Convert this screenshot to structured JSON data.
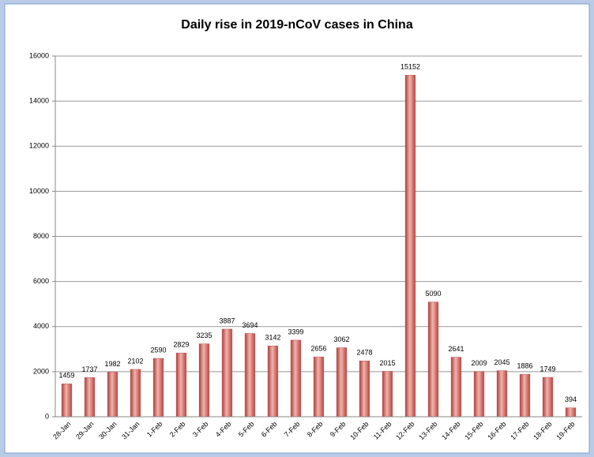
{
  "chart_data": {
    "type": "bar",
    "title": "Daily rise in 2019-nCoV cases in China",
    "categories": [
      "28-Jan",
      "29-Jan",
      "30-Jan",
      "31-Jan",
      "1-Feb",
      "2-Feb",
      "3-Feb",
      "4-Feb",
      "5-Feb",
      "6-Feb",
      "7-Feb",
      "8-Feb",
      "9-Feb",
      "10-Feb",
      "11-Feb",
      "12-Feb",
      "13-Feb",
      "14-Feb",
      "15-Feb",
      "16-Feb",
      "17-Feb",
      "18-Feb",
      "19-Feb"
    ],
    "values": [
      1459,
      1737,
      1982,
      2102,
      2590,
      2829,
      3235,
      3887,
      3694,
      3142,
      3399,
      2656,
      3062,
      2478,
      2015,
      15152,
      5090,
      2641,
      2009,
      2045,
      1886,
      1749,
      394
    ],
    "color": "#c0504d",
    "ylim": [
      0,
      16000
    ],
    "yticks": [
      0,
      2000,
      4000,
      6000,
      8000,
      10000,
      12000,
      14000,
      16000
    ],
    "grid": true
  }
}
